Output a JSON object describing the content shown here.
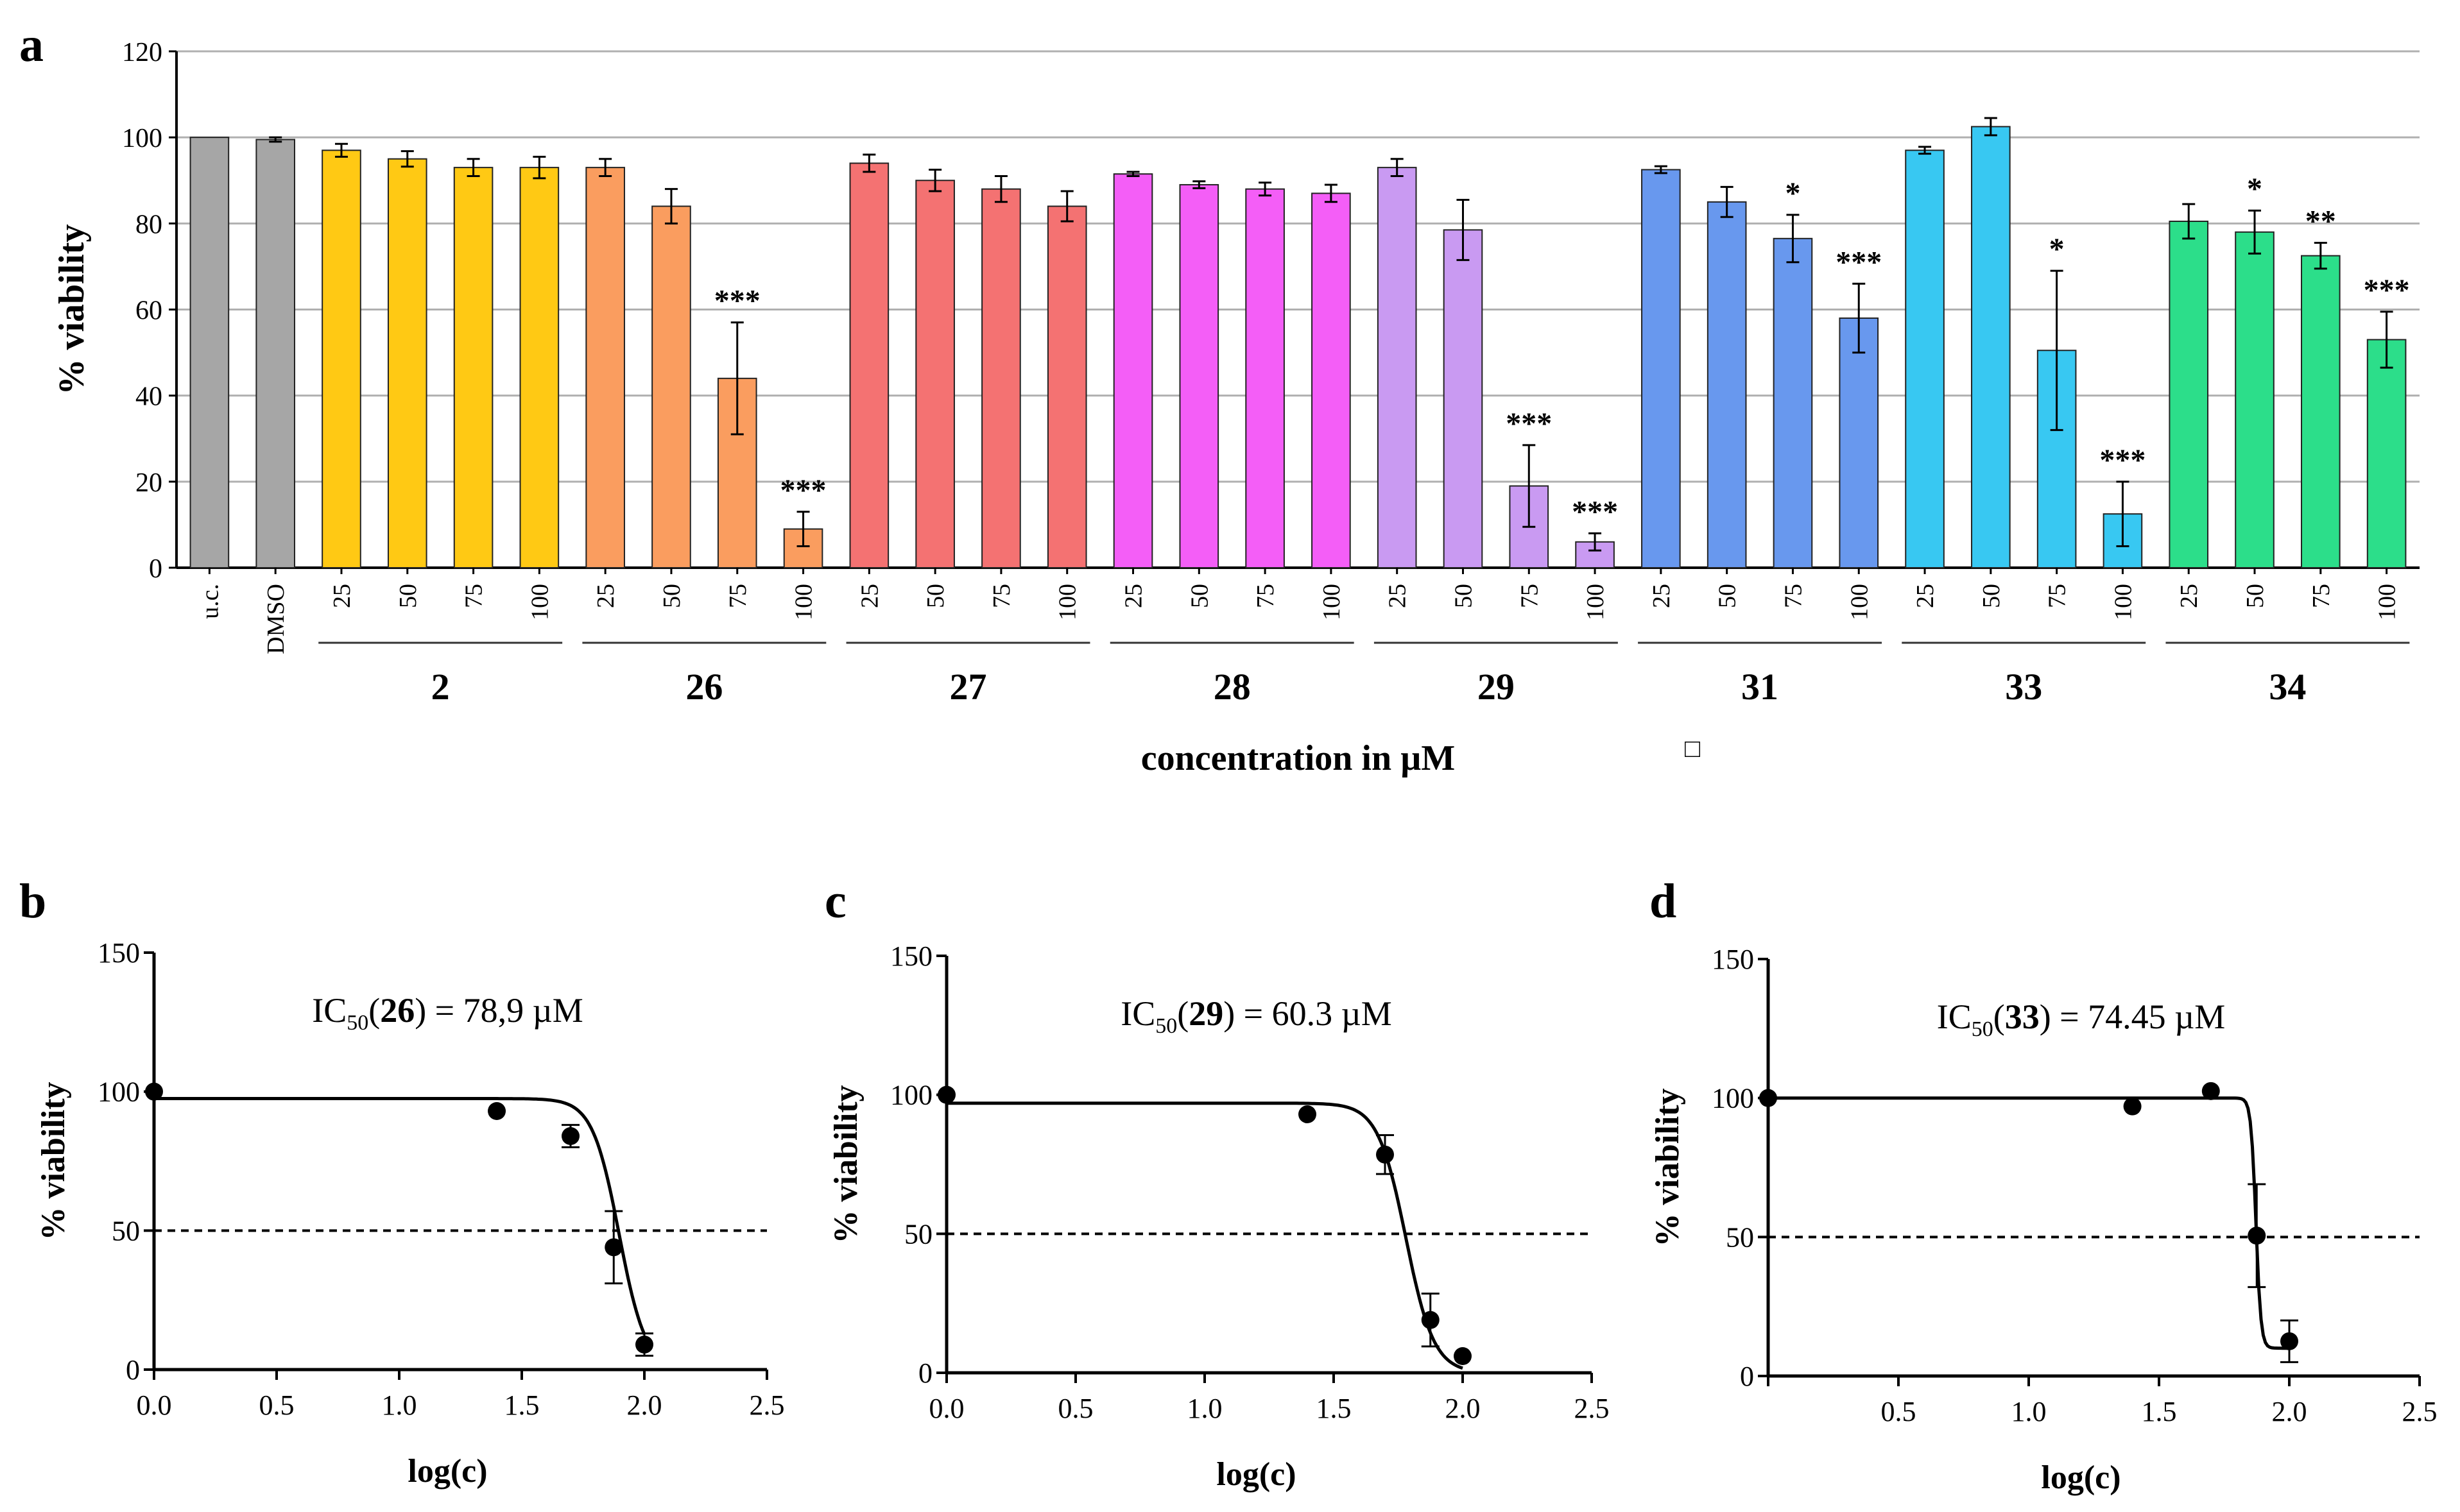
{
  "figure": {
    "panel_labels": {
      "a": "a",
      "b": "b",
      "c": "c",
      "d": "d"
    },
    "square_marker": "□"
  },
  "chart_data": [
    {
      "panel": "a",
      "type": "bar",
      "ylabel": "% viability",
      "xlabel": "concentration in µM",
      "ylim": [
        0,
        120
      ],
      "yticks": [
        0,
        20,
        40,
        60,
        80,
        100,
        120
      ],
      "grid": true,
      "controls": [
        {
          "label": "u.c.",
          "value": 100,
          "error": 0,
          "color": "#a6a6a6"
        },
        {
          "label": "DMSO",
          "value": 99.5,
          "error": 0.5,
          "color": "#a6a6a6"
        }
      ],
      "concentrations": [
        "25",
        "50",
        "75",
        "100"
      ],
      "groups": [
        {
          "name": "2",
          "color": "#ffc914",
          "values": [
            97,
            95,
            93,
            93
          ],
          "errors": [
            1.5,
            1.8,
            2,
            2.5
          ],
          "significance": [
            "",
            "",
            "",
            ""
          ]
        },
        {
          "name": "26",
          "color": "#fa9d5f",
          "values": [
            93,
            84,
            44,
            9
          ],
          "errors": [
            2,
            4,
            13,
            4
          ],
          "significance": [
            "",
            "",
            "***",
            "***"
          ]
        },
        {
          "name": "27",
          "color": "#f47272",
          "values": [
            94,
            90,
            88,
            84
          ],
          "errors": [
            2,
            2.5,
            3,
            3.5
          ],
          "significance": [
            "",
            "",
            "",
            ""
          ]
        },
        {
          "name": "28",
          "color": "#f45ef7",
          "values": [
            91.5,
            89,
            88,
            87
          ],
          "errors": [
            0.5,
            0.8,
            1.5,
            2
          ],
          "significance": [
            "",
            "",
            "",
            ""
          ]
        },
        {
          "name": "29",
          "color": "#c99af2",
          "values": [
            93,
            78.5,
            19,
            6
          ],
          "errors": [
            2,
            7,
            9.5,
            2
          ],
          "significance": [
            "",
            "",
            "***",
            "***"
          ]
        },
        {
          "name": "31",
          "color": "#6898ee",
          "values": [
            92.5,
            85,
            76.5,
            58
          ],
          "errors": [
            0.8,
            3.5,
            5.5,
            8
          ],
          "significance": [
            "",
            "",
            "*",
            "***"
          ]
        },
        {
          "name": "33",
          "color": "#38c8f2",
          "values": [
            97,
            102.5,
            50.5,
            12.5
          ],
          "errors": [
            0.8,
            2,
            18.5,
            7.5
          ],
          "significance": [
            "",
            "",
            "*",
            "***"
          ]
        },
        {
          "name": "34",
          "color": "#2cde8a",
          "values": [
            80.5,
            78,
            72.5,
            53
          ],
          "errors": [
            4,
            5,
            3,
            6.5
          ],
          "significance": [
            "",
            "*",
            "**",
            "***"
          ]
        }
      ]
    },
    {
      "panel": "b",
      "type": "scatter",
      "annotation": {
        "pre": "IC",
        "sub": "50",
        "open": "(",
        "bold": "26",
        "post": ") = 78,9 µM"
      },
      "ylabel": "% viability",
      "xlabel": "log(c)",
      "xlim": [
        0,
        2.5
      ],
      "ylim": [
        0,
        150
      ],
      "xticks": [
        "0.0",
        "0.5",
        "1.0",
        "1.5",
        "2.0",
        "2.5"
      ],
      "yticks": [
        "0",
        "50",
        "100",
        "150"
      ],
      "reference_line_y": 50,
      "fit": {
        "top": 97.5,
        "bottom": 0,
        "log_ic50": 1.897,
        "hill": 8
      },
      "points": [
        {
          "x": 0.0,
          "y": 100,
          "error": 0
        },
        {
          "x": 1.398,
          "y": 93,
          "error": 0
        },
        {
          "x": 1.699,
          "y": 84,
          "error": 4
        },
        {
          "x": 1.875,
          "y": 44,
          "error": 13
        },
        {
          "x": 2.0,
          "y": 9,
          "error": 4
        }
      ]
    },
    {
      "panel": "c",
      "type": "scatter",
      "annotation": {
        "pre": "IC",
        "sub": "50",
        "open": "(",
        "bold": "29",
        "post": ") = 60.3 µM"
      },
      "ylabel": "% viability",
      "xlabel": "log(c)",
      "xlim": [
        0,
        2.5
      ],
      "ylim": [
        0,
        150
      ],
      "xticks": [
        "0.0",
        "0.5",
        "1.0",
        "1.5",
        "2.0",
        "2.5"
      ],
      "yticks": [
        "0",
        "50",
        "100",
        "150"
      ],
      "reference_line_y": 50,
      "fit": {
        "top": 97,
        "bottom": 0,
        "log_ic50": 1.78,
        "hill": 8
      },
      "points": [
        {
          "x": 0.0,
          "y": 100,
          "error": 0
        },
        {
          "x": 1.398,
          "y": 93,
          "error": 0
        },
        {
          "x": 1.699,
          "y": 78.5,
          "error": 7
        },
        {
          "x": 1.875,
          "y": 19,
          "error": 9.5
        },
        {
          "x": 2.0,
          "y": 6,
          "error": 0
        }
      ]
    },
    {
      "panel": "d",
      "type": "scatter",
      "annotation": {
        "pre": "IC",
        "sub": "50",
        "open": "(",
        "bold": "33",
        "post": ") = 74.45 µM"
      },
      "ylabel": "% viability",
      "xlabel": "log(c)",
      "xlim": [
        0,
        2.5
      ],
      "ylim": [
        0,
        150
      ],
      "xticks": [
        "",
        "0.5",
        "1.0",
        "1.5",
        "2.0",
        "2.5"
      ],
      "yticks": [
        "0",
        "50",
        "100",
        "150"
      ],
      "reference_line_y": 50,
      "fit": {
        "top": 100,
        "bottom": 10,
        "log_ic50": 1.872,
        "hill": 45
      },
      "points": [
        {
          "x": 0.0,
          "y": 100,
          "error": 0
        },
        {
          "x": 1.398,
          "y": 97,
          "error": 0
        },
        {
          "x": 1.699,
          "y": 102.5,
          "error": 0
        },
        {
          "x": 1.875,
          "y": 50.5,
          "error": 18.5
        },
        {
          "x": 2.0,
          "y": 12.5,
          "error": 7.5
        }
      ]
    }
  ]
}
